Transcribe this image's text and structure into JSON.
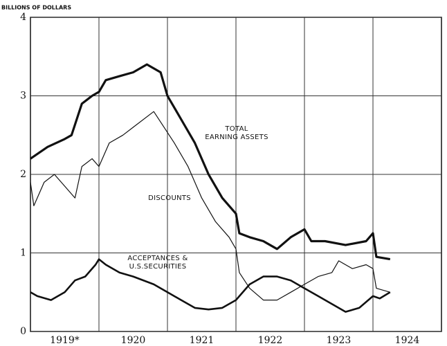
{
  "chart_data": {
    "type": "line",
    "y_label": "BILLIONS OF DOLLARS",
    "xlim": [
      1919,
      1925
    ],
    "ylim": [
      0,
      4
    ],
    "yticks": [
      0,
      1,
      2,
      3,
      4
    ],
    "xticks": [
      {
        "value": 1919.5,
        "label": "1919*"
      },
      {
        "value": 1920.5,
        "label": "1920"
      },
      {
        "value": 1921.5,
        "label": "1921"
      },
      {
        "value": 1922.5,
        "label": "1922"
      },
      {
        "value": 1923.5,
        "label": "1923"
      },
      {
        "value": 1924.5,
        "label": "1924"
      }
    ],
    "xgrid": [
      1920,
      1921,
      1922,
      1923,
      1924
    ],
    "grid": true,
    "series": [
      {
        "label": [
          "TOTAL",
          "EARNING ASSETS"
        ],
        "color": "#111",
        "width": 3.2,
        "x": [
          1919.0,
          1919.25,
          1919.5,
          1919.6,
          1919.75,
          1919.9,
          1920.0,
          1920.1,
          1920.3,
          1920.5,
          1920.7,
          1920.9,
          1921.0,
          1921.2,
          1921.4,
          1921.6,
          1921.8,
          1922.0,
          1922.05,
          1922.2,
          1922.4,
          1922.6,
          1922.8,
          1923.0,
          1923.1,
          1923.3,
          1923.6,
          1923.9,
          1924.0,
          1924.05,
          1924.25
        ],
        "values": [
          2.2,
          2.35,
          2.45,
          2.5,
          2.9,
          3.0,
          3.05,
          3.2,
          3.25,
          3.3,
          3.4,
          3.3,
          3.0,
          2.7,
          2.4,
          2.0,
          1.7,
          1.5,
          1.25,
          1.2,
          1.15,
          1.05,
          1.2,
          1.3,
          1.15,
          1.15,
          1.1,
          1.15,
          1.25,
          0.95,
          0.92
        ]
      },
      {
        "label": [
          "DISCOUNTS"
        ],
        "color": "#111",
        "width": 1.2,
        "x": [
          1919.0,
          1919.05,
          1919.2,
          1919.35,
          1919.5,
          1919.65,
          1919.75,
          1919.9,
          1920.0,
          1920.15,
          1920.35,
          1920.5,
          1920.8,
          1920.95,
          1921.1,
          1921.3,
          1921.5,
          1921.7,
          1921.9,
          1922.0,
          1922.05,
          1922.2,
          1922.4,
          1922.6,
          1922.8,
          1923.0,
          1923.2,
          1923.4,
          1923.5,
          1923.7,
          1923.9,
          1924.0,
          1924.05,
          1924.25
        ],
        "values": [
          1.9,
          1.6,
          1.9,
          2.0,
          1.85,
          1.7,
          2.1,
          2.2,
          2.1,
          2.4,
          2.5,
          2.6,
          2.8,
          2.6,
          2.4,
          2.1,
          1.7,
          1.4,
          1.2,
          1.05,
          0.75,
          0.55,
          0.4,
          0.4,
          0.5,
          0.6,
          0.7,
          0.75,
          0.9,
          0.8,
          0.85,
          0.8,
          0.55,
          0.5
        ]
      },
      {
        "label": [
          "ACCEPTANCES &",
          "U.S.SECURITIES"
        ],
        "color": "#111",
        "width": 2.6,
        "x": [
          1919.0,
          1919.1,
          1919.3,
          1919.5,
          1919.65,
          1919.8,
          1919.95,
          1920.0,
          1920.1,
          1920.3,
          1920.5,
          1920.8,
          1921.0,
          1921.2,
          1921.4,
          1921.6,
          1921.8,
          1922.0,
          1922.2,
          1922.4,
          1922.6,
          1922.8,
          1923.0,
          1923.2,
          1923.4,
          1923.6,
          1923.8,
          1924.0,
          1924.1,
          1924.25
        ],
        "values": [
          0.5,
          0.45,
          0.4,
          0.5,
          0.65,
          0.7,
          0.85,
          0.92,
          0.85,
          0.75,
          0.7,
          0.6,
          0.5,
          0.4,
          0.3,
          0.28,
          0.3,
          0.4,
          0.6,
          0.7,
          0.7,
          0.65,
          0.55,
          0.45,
          0.35,
          0.25,
          0.3,
          0.45,
          0.42,
          0.5
        ]
      }
    ]
  }
}
